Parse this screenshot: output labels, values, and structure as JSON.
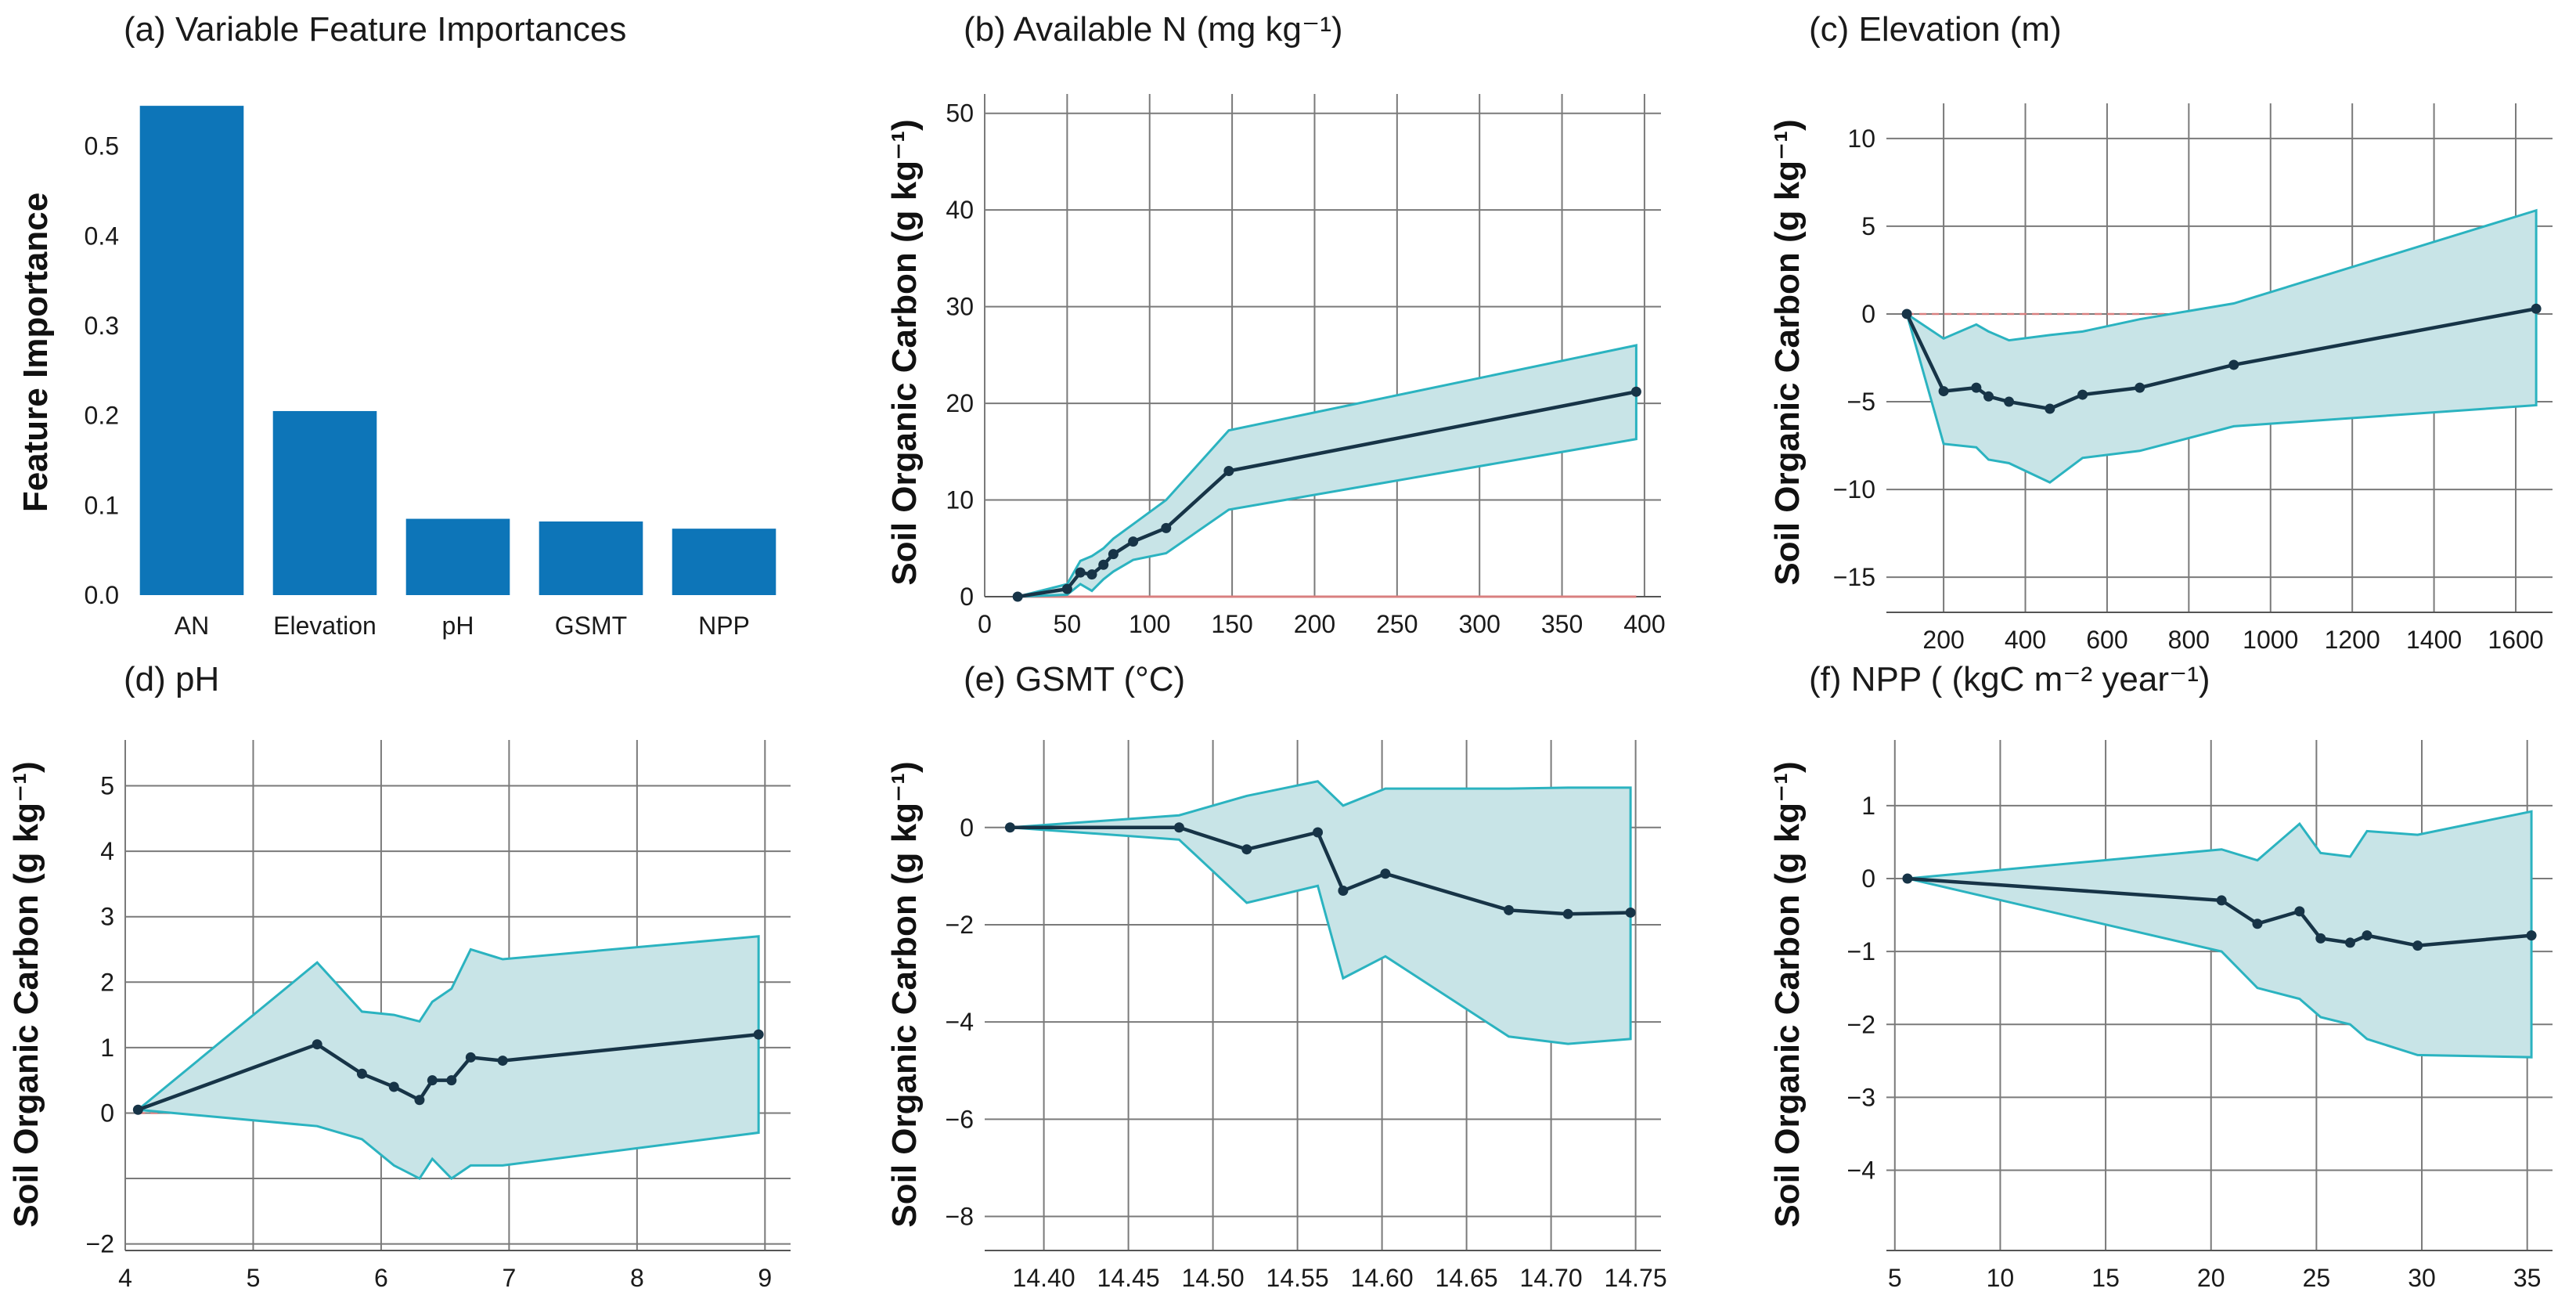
{
  "colors": {
    "bar": "#0d75b8",
    "band_fill": "#c8e4e7",
    "band_edge": "#2bb3c0",
    "mean_line": "#173447",
    "zero_line": "#d98080",
    "grid": "#7a7a7a"
  },
  "chart_data": [
    {
      "type": "bar",
      "title": "(a) Variable Feature Importances",
      "ylabel": "Feature Importance",
      "xlabel": "",
      "categories": [
        "AN",
        "Elevation",
        "pH",
        "GSMT",
        "NPP"
      ],
      "values": [
        0.545,
        0.205,
        0.085,
        0.082,
        0.074
      ],
      "ylim": [
        0,
        0.58
      ],
      "yticks": [
        0.0,
        0.1,
        0.2,
        0.3,
        0.4,
        0.5
      ],
      "ytick_labels": [
        "0.0",
        "0.1",
        "0.2",
        "0.3",
        "0.4",
        "0.5"
      ],
      "grid": false
    },
    {
      "type": "line",
      "title": "(b) Available N (mg kg⁻¹)",
      "ylabel": "Soil Organic Carbon (g kg⁻¹)",
      "xlabel": "",
      "x": [
        20,
        50,
        58,
        65,
        72,
        78,
        90,
        110,
        148,
        395
      ],
      "mean": [
        0,
        0.8,
        2.5,
        2.3,
        3.3,
        4.4,
        5.7,
        7.1,
        13,
        21.2
      ],
      "upper": [
        0,
        1.3,
        3.7,
        4.2,
        5.0,
        6.0,
        7.5,
        10.0,
        17.2,
        26
      ],
      "lower": [
        0,
        0.2,
        1.3,
        0.6,
        1.8,
        2.6,
        3.8,
        4.5,
        9.0,
        16.3
      ],
      "zero_style": "solid",
      "xlim": [
        0,
        410
      ],
      "ylim": [
        0,
        52
      ],
      "xticks": [
        0,
        50,
        100,
        150,
        200,
        250,
        300,
        350,
        400
      ],
      "xtick_labels": [
        "0",
        "50",
        "100",
        "150",
        "200",
        "250",
        "300",
        "350",
        "400"
      ],
      "yticks": [
        0,
        10,
        20,
        30,
        40,
        50
      ],
      "ytick_labels": [
        "0",
        "10",
        "20",
        "30",
        "40",
        "50"
      ],
      "grid": true
    },
    {
      "type": "line",
      "title": "(c) Elevation (m)",
      "ylabel": "Soil Organic Carbon (g kg⁻¹)",
      "xlabel": "",
      "x": [
        110,
        200,
        280,
        310,
        360,
        460,
        540,
        680,
        910,
        1650
      ],
      "mean": [
        0,
        -4.4,
        -4.2,
        -4.7,
        -5.0,
        -5.4,
        -4.6,
        -4.2,
        -2.9,
        0.3
      ],
      "upper": [
        0,
        -1.4,
        -0.6,
        -1.0,
        -1.5,
        -1.2,
        -1.0,
        -0.3,
        0.6,
        5.9
      ],
      "lower": [
        0,
        -7.4,
        -7.6,
        -8.3,
        -8.5,
        -9.6,
        -8.2,
        -7.8,
        -6.4,
        -5.2
      ],
      "zero_style": "dashed",
      "xlim": [
        60,
        1690
      ],
      "ylim": [
        -17,
        12
      ],
      "xticks": [
        200,
        400,
        600,
        800,
        1000,
        1200,
        1400,
        1600
      ],
      "xtick_labels": [
        "200",
        "400",
        "600",
        "800",
        "1000",
        "1200",
        "1400",
        "1600"
      ],
      "yticks": [
        -15,
        -10,
        -5,
        0,
        5,
        10
      ],
      "ytick_labels": [
        "−15",
        "−10",
        "−5",
        "0",
        "5",
        "10"
      ],
      "grid": true
    },
    {
      "type": "line",
      "title": "(d) pH",
      "ylabel": "Soil Organic Carbon (g kg⁻¹)",
      "xlabel": "",
      "x": [
        4.1,
        5.5,
        5.85,
        6.1,
        6.3,
        6.4,
        6.55,
        6.7,
        6.95,
        8.95
      ],
      "mean": [
        0.05,
        1.05,
        0.6,
        0.4,
        0.2,
        0.5,
        0.5,
        0.85,
        0.8,
        1.2
      ],
      "upper": [
        0.05,
        2.3,
        1.55,
        1.5,
        1.4,
        1.7,
        1.9,
        2.5,
        2.35,
        2.7
      ],
      "lower": [
        0.05,
        -0.2,
        -0.4,
        -0.8,
        -1.0,
        -0.7,
        -1.0,
        -0.8,
        -0.8,
        -0.3
      ],
      "zero_style": "dashed",
      "xlim": [
        4,
        9.2
      ],
      "ylim": [
        -2.1,
        5.7
      ],
      "xticks": [
        4,
        5,
        6,
        7,
        8,
        9
      ],
      "xtick_labels": [
        "4",
        "5",
        "6",
        "7",
        "8",
        "9"
      ],
      "yticks": [
        -2,
        -1,
        0,
        1,
        2,
        3,
        4,
        5
      ],
      "ytick_labels": [
        "−2",
        "",
        "0",
        "1",
        "2",
        "3",
        "4",
        "5"
      ],
      "grid": true
    },
    {
      "type": "line",
      "title": "(e) GSMT (°C)",
      "ylabel": "Soil Organic Carbon  (g kg⁻¹)",
      "xlabel": "",
      "x": [
        14.38,
        14.48,
        14.52,
        14.562,
        14.577,
        14.602,
        14.675,
        14.71,
        14.747
      ],
      "mean": [
        0,
        0,
        -0.45,
        -0.1,
        -1.3,
        -0.95,
        -1.7,
        -1.78,
        -1.75
      ],
      "upper": [
        0,
        0.25,
        0.65,
        0.95,
        0.45,
        0.8,
        0.8,
        0.82,
        0.82
      ],
      "lower": [
        0,
        -0.25,
        -1.55,
        -1.2,
        -3.1,
        -2.65,
        -4.3,
        -4.45,
        -4.35
      ],
      "zero_style": "solid",
      "xlim": [
        14.365,
        14.765
      ],
      "ylim": [
        -8.7,
        1.8
      ],
      "xticks": [
        14.4,
        14.45,
        14.5,
        14.55,
        14.6,
        14.65,
        14.7,
        14.75
      ],
      "xtick_labels": [
        "14.40",
        "14.45",
        "14.50",
        "14.55",
        "14.60",
        "14.65",
        "14.70",
        "14.75"
      ],
      "yticks": [
        -8,
        -6,
        -4,
        -2,
        0
      ],
      "ytick_labels": [
        "−8",
        "−6",
        "−4",
        "−2",
        "0"
      ],
      "grid": true
    },
    {
      "type": "line",
      "title": "(f) NPP ( (kgC m⁻² year⁻¹)",
      "ylabel": "Soil Organic Carbon (g kg⁻¹)",
      "xlabel": "",
      "x": [
        5.6,
        20.5,
        22.2,
        24.2,
        25.2,
        26.6,
        27.4,
        29.8,
        35.2
      ],
      "mean": [
        0,
        -0.3,
        -0.62,
        -0.45,
        -0.82,
        -0.88,
        -0.78,
        -0.92,
        -0.78
      ],
      "upper": [
        0,
        0.4,
        0.25,
        0.75,
        0.35,
        0.3,
        0.65,
        0.6,
        0.92
      ],
      "lower": [
        0,
        -1.0,
        -1.5,
        -1.65,
        -1.9,
        -2.0,
        -2.2,
        -2.42,
        -2.45
      ],
      "zero_style": "dashed",
      "xlim": [
        4.6,
        36.2
      ],
      "ylim": [
        -5.1,
        1.9
      ],
      "xticks": [
        5,
        10,
        15,
        20,
        25,
        30,
        35
      ],
      "xtick_labels": [
        "5",
        "10",
        "15",
        "20",
        "25",
        "30",
        "35"
      ],
      "yticks": [
        -4,
        -3,
        -2,
        -1,
        0,
        1
      ],
      "ytick_labels": [
        "−4",
        "−3",
        "−2",
        "−1",
        "0",
        "1"
      ],
      "grid": true
    }
  ]
}
